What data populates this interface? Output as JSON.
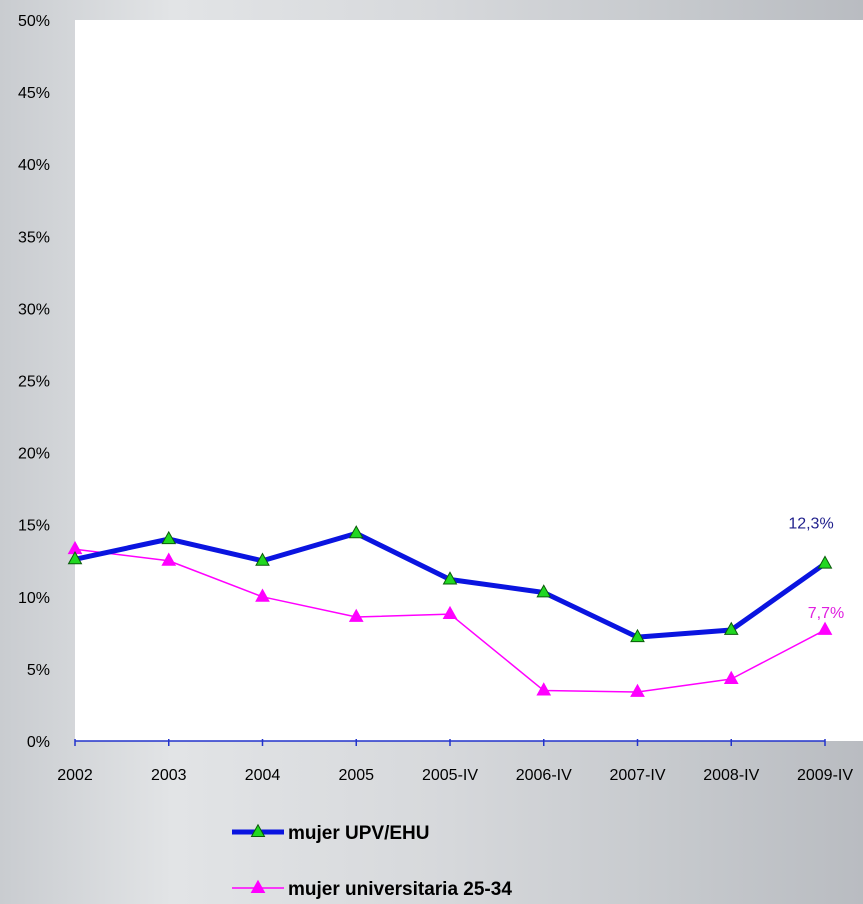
{
  "chart_data": {
    "type": "line",
    "categories": [
      "2002",
      "2003",
      "2004",
      "2005",
      "2005-IV",
      "2006-IV",
      "2007-IV",
      "2008-IV",
      "2009-IV"
    ],
    "y_ticks": [
      "0%",
      "5%",
      "10%",
      "15%",
      "20%",
      "25%",
      "30%",
      "35%",
      "40%",
      "45%",
      "50%"
    ],
    "ylim": [
      0,
      50
    ],
    "grid": false,
    "legend_position": "bottom",
    "series": [
      {
        "name": "mujer UPV/EHU",
        "values": [
          12.6,
          14.0,
          12.5,
          14.4,
          11.2,
          10.3,
          7.2,
          7.7,
          12.3
        ],
        "color": "#0a14e0",
        "marker_color": "#21d821",
        "end_label": "12,3%",
        "end_label_color": "#1f1f8c"
      },
      {
        "name": "mujer universitaria 25-34",
        "values": [
          13.3,
          12.5,
          10.0,
          8.6,
          8.8,
          3.5,
          3.4,
          4.3,
          7.7
        ],
        "color": "#ff00ff",
        "marker_color": "#ff00ff",
        "end_label": "7,7%",
        "end_label_color": "#e01fe0"
      }
    ]
  }
}
